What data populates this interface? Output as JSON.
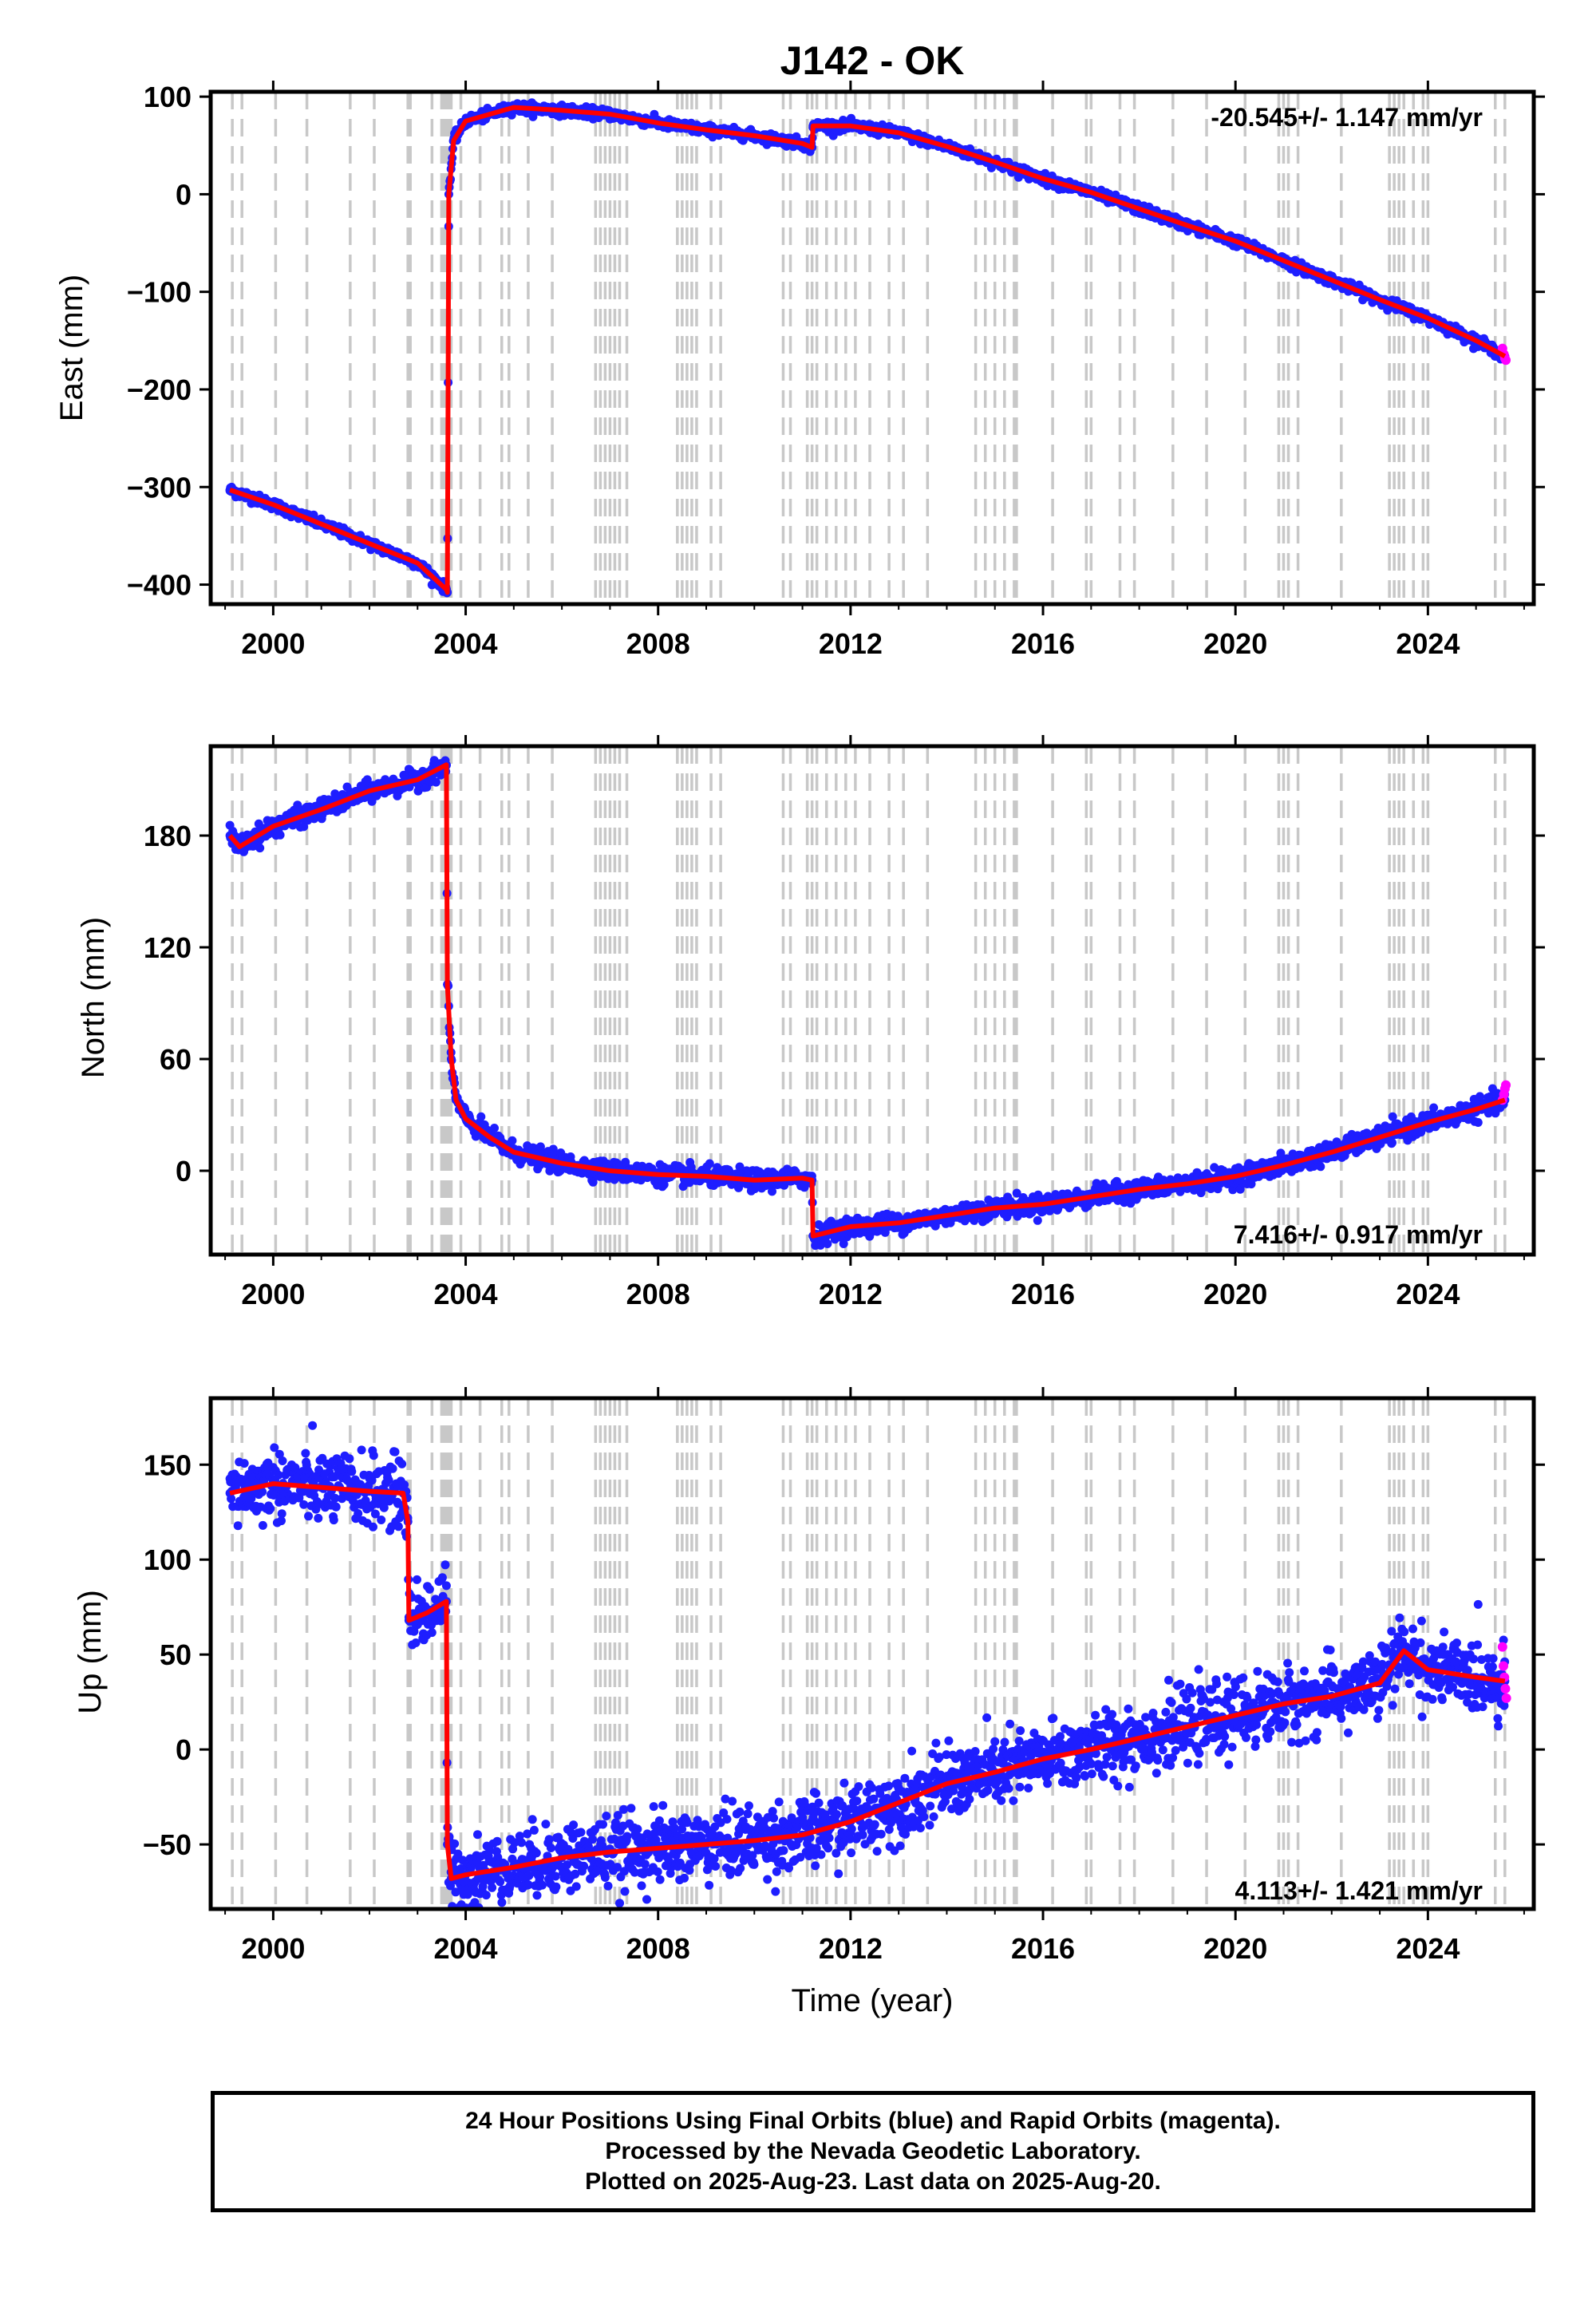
{
  "title": "J142 - OK",
  "colors": {
    "final_points": "#1e1eff",
    "rapid_points": "#ff00ff",
    "model": "#ff0000",
    "event_lines": "#c8c8c8"
  },
  "caption": {
    "line1": "24 Hour Positions Using Final Orbits (blue) and Rapid Orbits (magenta).",
    "line2": "Processed by the Nevada Geodetic Laboratory.",
    "line3": "Plotted on 2025-Aug-23. Last data on 2025-Aug-20."
  },
  "chart_data": [
    {
      "type": "scatter",
      "title": "J142 - OK",
      "xlabel": "",
      "ylabel": "East (mm)",
      "xlim": [
        1998.7,
        2026.2
      ],
      "ylim": [
        -420,
        105
      ],
      "xticks": [
        "2000",
        "2004",
        "2008",
        "2012",
        "2016",
        "2020",
        "2024"
      ],
      "yticks": [
        "100",
        "0",
        "−100",
        "−200",
        "−300",
        "−400"
      ],
      "ytick_values": [
        100,
        0,
        -100,
        -200,
        -300,
        -400
      ],
      "rate_label": "-20.545+/- 1.147 mm/yr",
      "rate_position": "top-right",
      "series": [
        {
          "name": "Final Orbits (blue)",
          "noise": 2.5,
          "x": [
            1999.1,
            2000.0,
            2001.0,
            2002.0,
            2003.0,
            2003.6,
            2003.62,
            2003.65,
            2003.75,
            2004.0,
            2004.5,
            2005.0,
            2006.0,
            2007.0,
            2008.0,
            2009.0,
            2010.0,
            2011.0,
            2011.2,
            2011.22,
            2012.0,
            2013.0,
            2014.0,
            2015.0,
            2016.0,
            2017.0,
            2018.0,
            2019.0,
            2020.0,
            2021.0,
            2022.0,
            2023.0,
            2024.0,
            2025.0,
            2025.6
          ],
          "y": [
            -303,
            -318,
            -338,
            -358,
            -378,
            -405,
            -408,
            0,
            55,
            75,
            82,
            89,
            86,
            82,
            73,
            66,
            60,
            52,
            48,
            70,
            70,
            63,
            49,
            33,
            16,
            2,
            -15,
            -32,
            -48,
            -68,
            -88,
            -108,
            -127,
            -150,
            -166
          ]
        },
        {
          "name": "Rapid Orbits (magenta)",
          "noise": 0,
          "x": [
            2025.55,
            2025.58,
            2025.6,
            2025.62
          ],
          "y": [
            -158,
            -164,
            -168,
            -170
          ]
        }
      ],
      "model": {
        "x": [
          1999.1,
          2000.0,
          2001.0,
          2002.0,
          2003.0,
          2003.6,
          2003.62,
          2003.65,
          2003.75,
          2004.0,
          2004.5,
          2005.0,
          2006.0,
          2007.0,
          2008.0,
          2009.0,
          2010.0,
          2011.0,
          2011.2,
          2011.22,
          2012.0,
          2013.0,
          2014.0,
          2015.0,
          2016.0,
          2017.0,
          2018.0,
          2019.0,
          2020.0,
          2021.0,
          2022.0,
          2023.0,
          2024.0,
          2025.0,
          2025.6
        ],
        "y": [
          -303,
          -318,
          -338,
          -358,
          -378,
          -405,
          -408,
          0,
          55,
          75,
          82,
          89,
          86,
          82,
          73,
          66,
          60,
          52,
          48,
          70,
          70,
          63,
          49,
          33,
          16,
          2,
          -15,
          -32,
          -48,
          -68,
          -88,
          -108,
          -127,
          -150,
          -166
        ]
      }
    },
    {
      "type": "scatter",
      "xlabel": "",
      "ylabel": "North (mm)",
      "xlim": [
        1998.7,
        2026.2
      ],
      "ylim": [
        -45,
        228
      ],
      "xticks": [
        "2000",
        "2004",
        "2008",
        "2012",
        "2016",
        "2020",
        "2024"
      ],
      "yticks": [
        "180",
        "120",
        "60",
        "0"
      ],
      "ytick_values": [
        180,
        120,
        60,
        0
      ],
      "rate_label": "7.416+/- 0.917 mm/yr",
      "rate_position": "bottom-right",
      "series": [
        {
          "name": "Final Orbits (blue)",
          "noise": 2.5,
          "x": [
            1999.1,
            1999.3,
            2000.0,
            2001.0,
            2002.0,
            2003.0,
            2003.6,
            2003.62,
            2003.7,
            2003.8,
            2004.0,
            2004.5,
            2005.0,
            2006.0,
            2007.0,
            2008.0,
            2009.0,
            2010.0,
            2011.0,
            2011.2,
            2011.22,
            2012.0,
            2013.0,
            2014.0,
            2015.0,
            2016.0,
            2017.0,
            2018.0,
            2019.0,
            2020.0,
            2021.0,
            2022.0,
            2023.0,
            2024.0,
            2025.0,
            2025.6
          ],
          "y": [
            180,
            174,
            185,
            194,
            204,
            210,
            218,
            100,
            60,
            38,
            28,
            18,
            10,
            4,
            0,
            -2,
            -3,
            -5,
            -4,
            -5,
            -35,
            -30,
            -28,
            -24,
            -20,
            -18,
            -14,
            -10,
            -7,
            -3,
            3,
            10,
            18,
            26,
            33,
            38
          ]
        },
        {
          "name": "Rapid Orbits (magenta)",
          "noise": 0,
          "x": [
            2025.55,
            2025.58,
            2025.6,
            2025.62
          ],
          "y": [
            38,
            41,
            44,
            46
          ]
        }
      ],
      "model": {
        "x": [
          1999.1,
          1999.3,
          2000.0,
          2001.0,
          2002.0,
          2003.0,
          2003.6,
          2003.62,
          2003.7,
          2003.8,
          2004.0,
          2004.5,
          2005.0,
          2006.0,
          2007.0,
          2008.0,
          2009.0,
          2010.0,
          2011.0,
          2011.2,
          2011.22,
          2012.0,
          2013.0,
          2014.0,
          2015.0,
          2016.0,
          2017.0,
          2018.0,
          2019.0,
          2020.0,
          2021.0,
          2022.0,
          2023.0,
          2024.0,
          2025.0,
          2025.6
        ],
        "y": [
          180,
          174,
          185,
          194,
          204,
          210,
          218,
          100,
          60,
          38,
          28,
          18,
          10,
          4,
          0,
          -2,
          -3,
          -5,
          -4,
          -5,
          -35,
          -30,
          -28,
          -24,
          -20,
          -18,
          -14,
          -10,
          -7,
          -3,
          3,
          10,
          18,
          26,
          33,
          38
        ]
      }
    },
    {
      "type": "scatter",
      "xlabel": "Time (year)",
      "ylabel": "Up (mm)",
      "xlim": [
        1998.7,
        2026.2
      ],
      "ylim": [
        -84,
        185
      ],
      "xticks": [
        "2000",
        "2004",
        "2008",
        "2012",
        "2016",
        "2020",
        "2024"
      ],
      "yticks": [
        "150",
        "100",
        "50",
        "0",
        "−50"
      ],
      "ytick_values": [
        150,
        100,
        50,
        0,
        -50
      ],
      "rate_label": "4.113+/- 1.421 mm/yr",
      "rate_position": "bottom-right",
      "series": [
        {
          "name": "Final Orbits (blue)",
          "noise": 9,
          "x": [
            1999.1,
            2000.0,
            2001.0,
            2002.0,
            2002.7,
            2002.8,
            2002.82,
            2003.2,
            2003.6,
            2003.62,
            2003.7,
            2004.0,
            2005.0,
            2006.0,
            2007.0,
            2008.0,
            2009.0,
            2010.0,
            2011.0,
            2012.0,
            2013.0,
            2014.0,
            2015.0,
            2016.0,
            2017.0,
            2018.0,
            2019.0,
            2020.0,
            2021.0,
            2022.0,
            2023.0,
            2023.5,
            2024.0,
            2025.0,
            2025.6
          ],
          "y": [
            135,
            140,
            138,
            136,
            135,
            120,
            68,
            72,
            78,
            -50,
            -68,
            -66,
            -62,
            -57,
            -54,
            -52,
            -50,
            -48,
            -45,
            -38,
            -28,
            -18,
            -12,
            -5,
            0,
            6,
            12,
            18,
            24,
            28,
            35,
            52,
            42,
            38,
            36
          ]
        },
        {
          "name": "Rapid Orbits (magenta)",
          "noise": 0,
          "x": [
            2025.55,
            2025.57,
            2025.59,
            2025.61,
            2025.63
          ],
          "y": [
            54,
            44,
            38,
            32,
            27
          ]
        }
      ],
      "model": {
        "x": [
          1999.1,
          2000.0,
          2001.0,
          2002.0,
          2002.7,
          2002.8,
          2002.82,
          2003.2,
          2003.6,
          2003.62,
          2003.7,
          2004.0,
          2005.0,
          2006.0,
          2007.0,
          2008.0,
          2009.0,
          2010.0,
          2011.0,
          2012.0,
          2013.0,
          2014.0,
          2015.0,
          2016.0,
          2017.0,
          2018.0,
          2019.0,
          2020.0,
          2021.0,
          2022.0,
          2023.0,
          2023.5,
          2024.0,
          2025.0,
          2025.6
        ],
        "y": [
          135,
          140,
          138,
          136,
          135,
          120,
          68,
          72,
          78,
          -50,
          -68,
          -66,
          -62,
          -57,
          -54,
          -52,
          -50,
          -48,
          -45,
          -38,
          -28,
          -18,
          -12,
          -5,
          0,
          6,
          12,
          18,
          24,
          28,
          35,
          52,
          42,
          38,
          36
        ]
      }
    }
  ],
  "event_lines_years": [
    1999.15,
    1999.35,
    2000.05,
    2000.7,
    2001.6,
    2002.1,
    2002.8,
    2002.85,
    2003.3,
    2003.5,
    2003.55,
    2003.6,
    2003.65,
    2003.7,
    2003.9,
    2004.3,
    2004.75,
    2004.9,
    2005.3,
    2005.8,
    2006.7,
    2006.8,
    2006.9,
    2007.0,
    2007.1,
    2007.2,
    2007.35,
    2008.4,
    2008.5,
    2008.6,
    2008.7,
    2008.8,
    2009.1,
    2009.3,
    2010.6,
    2010.75,
    2011.1,
    2011.2,
    2011.3,
    2011.5,
    2011.7,
    2011.9,
    2012.1,
    2012.4,
    2012.8,
    2013.1,
    2013.6,
    2014.6,
    2014.8,
    2015.0,
    2015.2,
    2015.4,
    2015.45,
    2016.2,
    2016.9,
    2017.0,
    2017.6,
    2017.9,
    2018.7,
    2019.4,
    2020.2,
    2020.9,
    2021.0,
    2021.1,
    2021.3,
    2022.2,
    2023.2,
    2023.3,
    2023.4,
    2023.5,
    2023.7,
    2023.9,
    2024.0,
    2025.4,
    2025.6
  ]
}
